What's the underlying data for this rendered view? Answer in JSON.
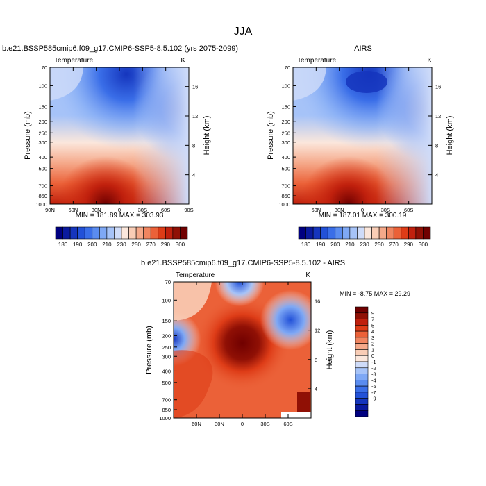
{
  "page": {
    "title": "JJA"
  },
  "colors": {
    "abs_scale": [
      "#000080",
      "#0a1a9e",
      "#1535bd",
      "#2251d8",
      "#3a6ee8",
      "#5a8cf0",
      "#7ea8f5",
      "#a6c3f8",
      "#cfdcf9",
      "#fbe7dc",
      "#f9cdb6",
      "#f5a98a",
      "#f08560",
      "#eb6138",
      "#de3c17",
      "#c0200d",
      "#901005",
      "#700000"
    ],
    "diff_scale": [
      "#000080",
      "#0a1a9e",
      "#1535bd",
      "#2251d8",
      "#3a6ee8",
      "#5a8cf0",
      "#7ea8f5",
      "#a6c3f8",
      "#cfdcf9",
      "#ffffff",
      "#fbe7dc",
      "#f9cdb6",
      "#f5a98a",
      "#f08560",
      "#eb6138",
      "#de3c17",
      "#c0200d",
      "#901005",
      "#700000"
    ]
  },
  "panels": {
    "model": {
      "title": "b.e21.BSSP585cmip6.f09_g17.CMIP6-SSP5-8.5.102 (yrs 2075-2099)",
      "left_label": "Temperature",
      "right_label": "K",
      "ylabel": "Pressure (mb)",
      "ylabel_right": "Height (km)",
      "minmax": "MIN = 181.89  MAX = 303.93"
    },
    "obs": {
      "title": "AIRS",
      "left_label": "Temperature",
      "right_label": "K",
      "ylabel": "Pressure (mb)",
      "ylabel_right": "Height (km)",
      "minmax": "MIN = 187.01  MAX = 300.19"
    },
    "diff": {
      "title": "b.e21.BSSP585cmip6.f09_g17.CMIP6-SSP5-8.5.102 - AIRS",
      "left_label": "Temperature",
      "right_label": "K",
      "ylabel": "Pressure (mb)",
      "ylabel_right": "Height (km)",
      "minmax": "MIN =  -8.75  MAX =  29.29"
    }
  },
  "chart_data": [
    {
      "type": "heatmap",
      "title": "b.e21.BSSP585cmip6.f09_g17.CMIP6-SSP5-8.5.102 (yrs 2075-2099)",
      "ylabel": "Pressure (mb)",
      "ylabel_right": "Height (km)",
      "x_ticks": [
        "90N",
        "60N",
        "30N",
        "0",
        "30S",
        "60S",
        "90S"
      ],
      "y_ticks": [
        "70",
        "100",
        "150",
        "200",
        "250",
        "300",
        "400",
        "500",
        "700",
        "850",
        "1000"
      ],
      "y_right_ticks": [
        "4",
        "8",
        "12",
        "16"
      ],
      "min": 181.89,
      "max": 303.93,
      "y_scale": "log",
      "colorbar": [
        "180",
        "190",
        "200",
        "210",
        "230",
        "250",
        "270",
        "290",
        "300"
      ]
    },
    {
      "type": "heatmap",
      "title": "AIRS",
      "ylabel": "Pressure (mb)",
      "ylabel_right": "Height (km)",
      "x_ticks": [
        "60N",
        "30N",
        "0",
        "30S",
        "60S"
      ],
      "y_ticks": [
        "70",
        "100",
        "150",
        "200",
        "250",
        "300",
        "400",
        "500",
        "700",
        "850",
        "1000"
      ],
      "y_right_ticks": [
        "4",
        "8",
        "12",
        "16"
      ],
      "min": 187.01,
      "max": 300.19,
      "y_scale": "log",
      "colorbar": [
        "180",
        "190",
        "200",
        "210",
        "230",
        "250",
        "270",
        "290",
        "300"
      ]
    },
    {
      "type": "heatmap",
      "title": "b.e21.BSSP585cmip6.f09_g17.CMIP6-SSP5-8.5.102 - AIRS",
      "ylabel": "Pressure (mb)",
      "ylabel_right": "Height (km)",
      "x_ticks": [
        "60N",
        "30N",
        "0",
        "30S",
        "60S"
      ],
      "y_ticks": [
        "70",
        "100",
        "150",
        "200",
        "250",
        "300",
        "400",
        "500",
        "700",
        "850",
        "1000"
      ],
      "y_right_ticks": [
        "4",
        "8",
        "12",
        "16"
      ],
      "min": -8.75,
      "max": 29.29,
      "y_scale": "log",
      "colorbar": [
        "9",
        "7",
        "5",
        "4",
        "3",
        "2",
        "1",
        "0",
        "-1",
        "-2",
        "-3",
        "-4",
        "-5",
        "-7",
        "-9"
      ]
    }
  ]
}
